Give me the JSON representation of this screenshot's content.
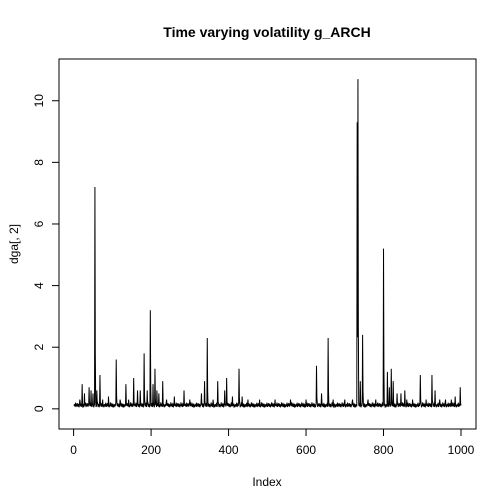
{
  "chart_data": {
    "type": "line",
    "title": "Time varying volatility g_ARCH",
    "xlabel": "Index",
    "ylabel": "dga[, 2]",
    "xlim": [
      1,
      1000
    ],
    "ylim": [
      -0.2,
      10.9
    ],
    "xticks": [
      0,
      200,
      400,
      600,
      800,
      1000
    ],
    "yticks": [
      0,
      2,
      4,
      6,
      8,
      10
    ],
    "grid": false,
    "legend": "none",
    "baseline": [
      0.05,
      0.1,
      0.15,
      0.08,
      0.12,
      0.2,
      0.06,
      0.1,
      0.14,
      0.09,
      0.18,
      0.07,
      0.11,
      0.16,
      0.05,
      0.13,
      0.09,
      0.21,
      0.08,
      0.12,
      0.15,
      0.06,
      0.1,
      0.17,
      0.08,
      0.11
    ],
    "spikes": [
      [
        16,
        0.3
      ],
      [
        22,
        0.8
      ],
      [
        28,
        0.5
      ],
      [
        40,
        0.7
      ],
      [
        45,
        0.6
      ],
      [
        50,
        0.5
      ],
      [
        55,
        7.2
      ],
      [
        60,
        0.6
      ],
      [
        68,
        1.1
      ],
      [
        75,
        0.3
      ],
      [
        90,
        0.4
      ],
      [
        110,
        1.6
      ],
      [
        120,
        0.3
      ],
      [
        135,
        0.8
      ],
      [
        142,
        0.3
      ],
      [
        155,
        1.0
      ],
      [
        165,
        0.6
      ],
      [
        172,
        0.6
      ],
      [
        182,
        1.8
      ],
      [
        190,
        0.6
      ],
      [
        198,
        3.2
      ],
      [
        205,
        0.8
      ],
      [
        210,
        1.3
      ],
      [
        215,
        0.6
      ],
      [
        220,
        0.5
      ],
      [
        230,
        0.9
      ],
      [
        240,
        0.3
      ],
      [
        260,
        0.4
      ],
      [
        285,
        0.6
      ],
      [
        300,
        0.3
      ],
      [
        330,
        0.5
      ],
      [
        338,
        0.9
      ],
      [
        345,
        2.3
      ],
      [
        360,
        0.3
      ],
      [
        372,
        0.9
      ],
      [
        390,
        0.6
      ],
      [
        395,
        1.0
      ],
      [
        410,
        0.4
      ],
      [
        427,
        1.3
      ],
      [
        435,
        0.4
      ],
      [
        450,
        0.3
      ],
      [
        480,
        0.3
      ],
      [
        520,
        0.3
      ],
      [
        560,
        0.3
      ],
      [
        600,
        0.3
      ],
      [
        627,
        1.4
      ],
      [
        640,
        0.5
      ],
      [
        657,
        2.3
      ],
      [
        670,
        0.3
      ],
      [
        700,
        0.3
      ],
      [
        720,
        0.3
      ],
      [
        732,
        9.3
      ],
      [
        734,
        10.7
      ],
      [
        740,
        0.9
      ],
      [
        746,
        2.4
      ],
      [
        760,
        0.3
      ],
      [
        780,
        0.3
      ],
      [
        800,
        5.2
      ],
      [
        810,
        1.2
      ],
      [
        815,
        0.7
      ],
      [
        820,
        1.3
      ],
      [
        825,
        0.9
      ],
      [
        835,
        0.5
      ],
      [
        845,
        0.5
      ],
      [
        855,
        0.6
      ],
      [
        860,
        0.3
      ],
      [
        875,
        0.3
      ],
      [
        895,
        1.1
      ],
      [
        910,
        0.3
      ],
      [
        925,
        1.1
      ],
      [
        933,
        0.6
      ],
      [
        945,
        0.3
      ],
      [
        960,
        0.3
      ],
      [
        975,
        0.3
      ],
      [
        985,
        0.4
      ],
      [
        998,
        0.7
      ]
    ]
  }
}
